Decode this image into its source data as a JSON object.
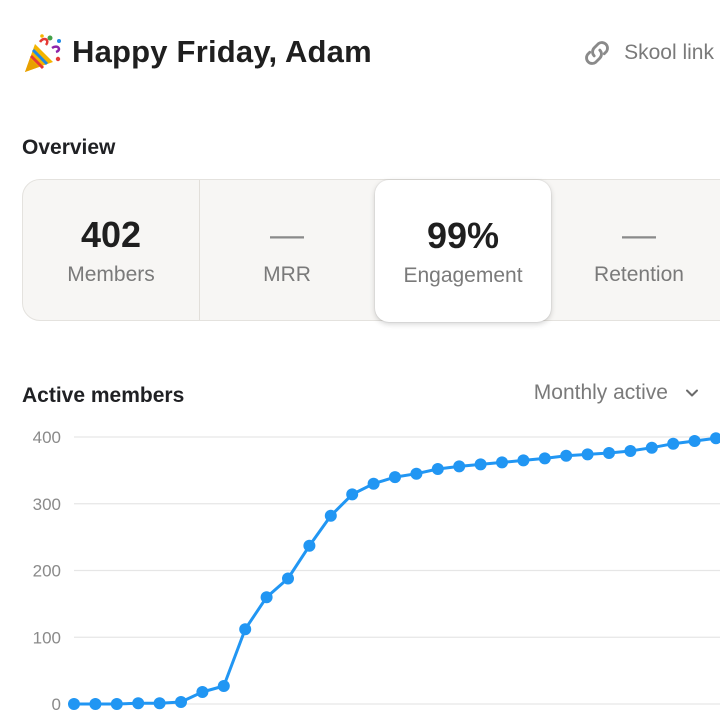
{
  "header": {
    "greeting": "Happy Friday, Adam",
    "link_label": "Skool link",
    "party_icon": "party-popper-icon",
    "link_icon": "link-icon"
  },
  "overview": {
    "title": "Overview",
    "stats": [
      {
        "value": "402",
        "label": "Members",
        "selected": false
      },
      {
        "value": "—",
        "label": "MRR",
        "selected": false
      },
      {
        "value": "99%",
        "label": "Engagement",
        "selected": true
      },
      {
        "value": "—",
        "label": "Retention",
        "selected": false
      }
    ]
  },
  "active_members": {
    "title": "Active members",
    "filter": {
      "selected": "Monthly active",
      "icon": "chevron-down-icon"
    }
  },
  "colors": {
    "line": "#2196f3",
    "grid": "#e6e6e6"
  },
  "chart_data": {
    "type": "line",
    "ylim": [
      0,
      400
    ],
    "yticks": [
      0,
      100,
      200,
      300,
      400
    ],
    "grid": true,
    "series": [
      {
        "values": [
          0,
          0,
          0,
          1,
          1,
          3,
          18,
          27,
          112,
          160,
          188,
          237,
          282,
          314,
          330,
          340,
          345,
          352,
          356,
          359,
          362,
          365,
          368,
          372,
          374,
          376,
          379,
          384,
          390,
          394,
          398
        ]
      }
    ]
  }
}
